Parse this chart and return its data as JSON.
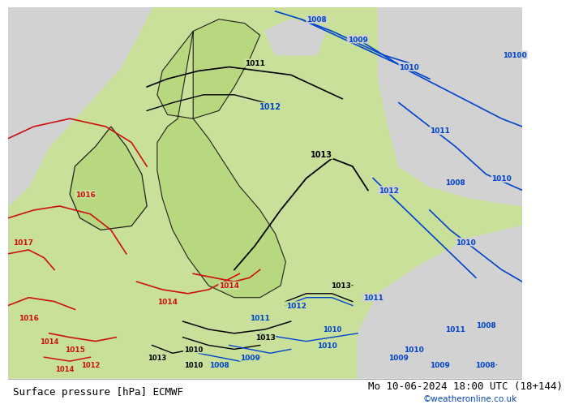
{
  "title_left": "Surface pressure [hPa] ECMWF",
  "title_right": "Mo 10-06-2024 18:00 UTC (18+144)",
  "copyright": "©weatheronline.co.uk",
  "bg_green": "#c8e09a",
  "bg_gray": "#d2d2d2",
  "bg_white": "#ffffff",
  "land_green": "#b8d880",
  "font_size_bottom": 9,
  "fig_width": 6.34,
  "fig_height": 4.9
}
